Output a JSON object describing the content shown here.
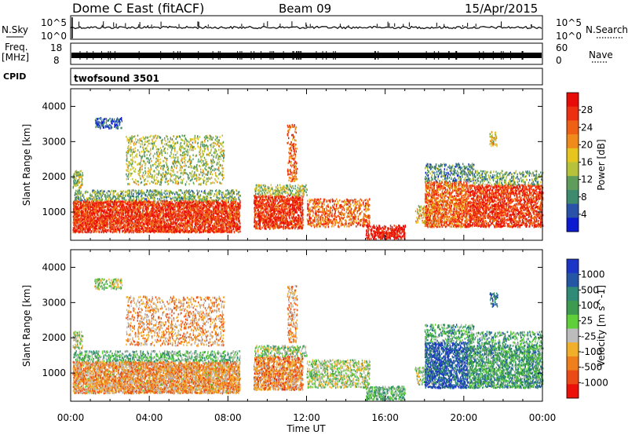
{
  "header": {
    "station": "Dome C East (fitACF)",
    "beam": "Beam 09",
    "date": "15/Apr/2015"
  },
  "side_labels": {
    "nsky": "N.Sky",
    "freq_top": "Freq.",
    "freq_unit": "[MHz]",
    "cpid": "CPID",
    "nsearch": "N.Search",
    "nave": "Nave",
    "program": "twofsound 3501"
  },
  "small_ticks": {
    "sky_top": "10^5",
    "sky_bottom": "10^0",
    "search_top": "10^5",
    "search_bottom": "10^0",
    "freq_top": "18",
    "freq_bottom": "8",
    "nave_top": "60",
    "nave_bottom": "0"
  },
  "colors": {
    "power": [
      "#0a1bd0",
      "#2a52a8",
      "#3e8a6e",
      "#5f9d5a",
      "#b6c33a",
      "#e6c51e",
      "#f08a1a",
      "#f06014",
      "#ec3010",
      "#e80c08"
    ],
    "velocity": [
      "#ec1008",
      "#ec4a14",
      "#ef7f1b",
      "#f2b02a",
      "#bcbcbc",
      "#5fd03a",
      "#3e9a4e",
      "#2f8a76",
      "#2556a6",
      "#1b36c6"
    ]
  },
  "chart_data": [
    {
      "type": "heatmap",
      "panel": "power",
      "xlabel": "Time UT",
      "ylabel": "Slant Range [km]",
      "x_ticks": [
        "00:00",
        "04:00",
        "08:00",
        "12:00",
        "16:00",
        "20:00",
        "00:00"
      ],
      "xlim_hours": [
        0,
        24
      ],
      "ylim": [
        200,
        4500
      ],
      "y_ticks": [
        1000,
        2000,
        3000,
        4000
      ],
      "colorbar": {
        "label": "Power [dB]",
        "range": [
          0,
          32
        ],
        "ticks": [
          "4",
          "8",
          "12",
          "16",
          "20",
          "24",
          "28"
        ]
      }
    },
    {
      "type": "heatmap",
      "panel": "velocity",
      "xlabel": "Time UT",
      "ylabel": "Slant Range [km]",
      "x_ticks": [
        "00:00",
        "04:00",
        "08:00",
        "12:00",
        "16:00",
        "20:00",
        "00:00"
      ],
      "xlim_hours": [
        0,
        24
      ],
      "ylim": [
        200,
        4500
      ],
      "y_ticks": [
        1000,
        2000,
        3000,
        4000
      ],
      "colorbar": {
        "label": "Velocity [m s^-1]",
        "ticks": [
          "1000",
          "500",
          "100",
          "25",
          "-25",
          "-100",
          "-500",
          "-1000"
        ]
      }
    }
  ]
}
